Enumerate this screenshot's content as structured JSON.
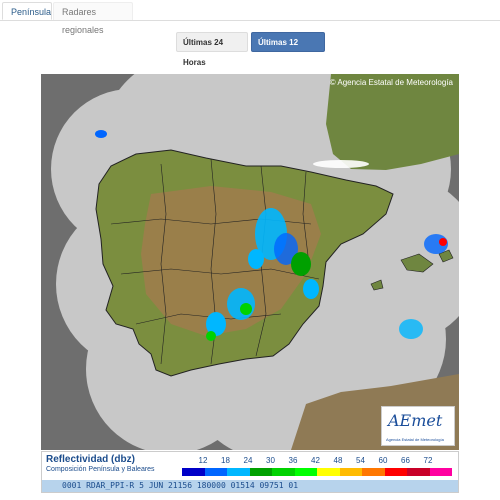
{
  "tabs": [
    {
      "label": "Península",
      "active": true
    },
    {
      "label": "Radares regionales",
      "active": false
    }
  ],
  "time_buttons": [
    {
      "label": "Últimas 24 Horas",
      "active": false
    },
    {
      "label": "Últimas 12 Horas",
      "active": true
    }
  ],
  "map": {
    "copyright": "© Agencia Estatal de Meteorología",
    "logo_text": "AEmet",
    "logo_subtext": "Agencia Estatal de Meteorología"
  },
  "legend": {
    "title": "Reflectividad (dbz)",
    "subtitle": "Composición Península y Baleares",
    "values": [
      "12",
      "18",
      "24",
      "30",
      "36",
      "42",
      "48",
      "54",
      "60",
      "66",
      "72"
    ],
    "colors": [
      "#0000c8",
      "#0066ff",
      "#00b7ff",
      "#00a000",
      "#00d200",
      "#00ff00",
      "#ffff00",
      "#ffbb00",
      "#ff7700",
      "#ff0000",
      "#c80028",
      "#ff00a0"
    ],
    "footer": "0001 RDAR_PPI-R    5 JUN 21156 180000 01514 09751 01"
  }
}
